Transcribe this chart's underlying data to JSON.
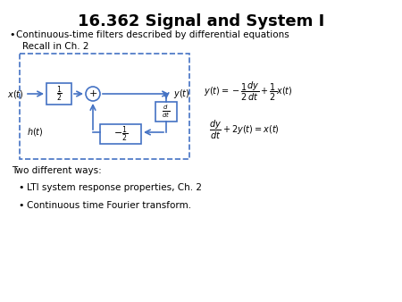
{
  "title": "16.362 Signal and System I",
  "bg_color": "#ffffff",
  "bullet1": "Continuous-time filters described by differential equations",
  "sub1": "Recall in Ch. 2",
  "two_ways": "Two different ways:",
  "bullet2": "LTI system response properties, Ch. 2",
  "bullet3": "Continuous time Fourier transform.",
  "diagram_color": "#4472C4"
}
